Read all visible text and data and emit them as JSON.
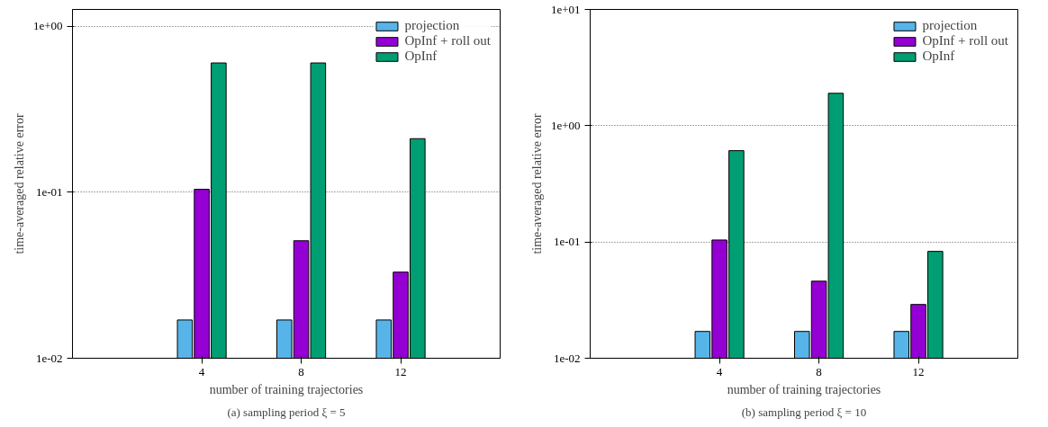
{
  "chart_data": [
    {
      "type": "bar",
      "xlabel": "number of training trajectories",
      "ylabel": "time-averaged relative error",
      "categories": [
        "4",
        "8",
        "12"
      ],
      "log": "y",
      "ylim": [
        0.01,
        1.26
      ],
      "yticks": [
        {
          "value": 0.01,
          "label": "1e-02"
        },
        {
          "value": 0.1,
          "label": "1e-01"
        },
        {
          "value": 1,
          "label": "1e+00"
        }
      ],
      "grid": "y",
      "legend": "top right",
      "annotations": [
        "(a) sampling period ξ = 5"
      ],
      "series": [
        {
          "name": "projection",
          "color": "#56b4e9",
          "values": [
            0.017,
            0.017,
            0.017
          ]
        },
        {
          "name": "OpInf + roll out",
          "color": "#9400d3",
          "values": [
            0.104,
            0.051,
            0.033
          ]
        },
        {
          "name": "OpInf",
          "color": "#009e73",
          "values": [
            0.6,
            0.6,
            0.21
          ]
        }
      ]
    },
    {
      "type": "bar",
      "xlabel": "number of training trajectories",
      "ylabel": "time-averaged relative error",
      "categories": [
        "4",
        "8",
        "12"
      ],
      "log": "y",
      "ylim": [
        0.01,
        10
      ],
      "yticks": [
        {
          "value": 0.01,
          "label": "1e-02"
        },
        {
          "value": 0.1,
          "label": "1e-01"
        },
        {
          "value": 1,
          "label": "1e+00"
        },
        {
          "value": 10,
          "label": "1e+01"
        }
      ],
      "grid": "y",
      "legend": "top right",
      "annotations": [
        "(b) sampling period ξ = 10"
      ],
      "series": [
        {
          "name": "projection",
          "color": "#56b4e9",
          "values": [
            0.017,
            0.017,
            0.017
          ]
        },
        {
          "name": "OpInf + roll out",
          "color": "#9400d3",
          "values": [
            0.104,
            0.046,
            0.029
          ]
        },
        {
          "name": "OpInf",
          "color": "#009e73",
          "values": [
            0.61,
            1.9,
            0.083
          ]
        }
      ]
    }
  ]
}
